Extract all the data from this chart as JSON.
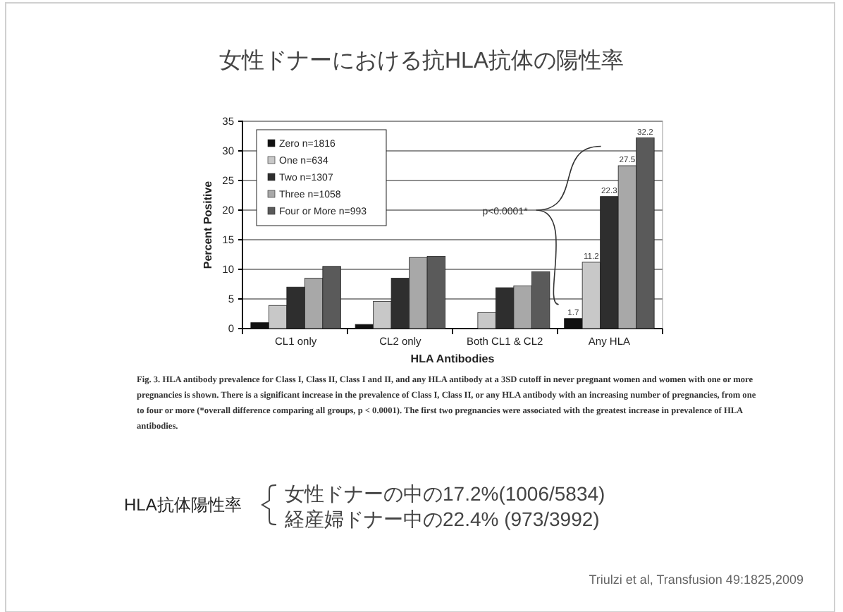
{
  "chart_data": {
    "type": "bar",
    "title": "女性ドナーにおける抗HLA抗体の陽性率",
    "xlabel": "HLA Antibodies",
    "ylabel": "Percent Positive",
    "categories": [
      "CL1 only",
      "CL2 only",
      "Both CL1 & CL2",
      "Any HLA"
    ],
    "series": [
      {
        "name": "Zero n=1816",
        "color": "#111111",
        "values": [
          1.0,
          0.7,
          0,
          1.7
        ],
        "value_labels": [
          null,
          null,
          null,
          "1.7"
        ]
      },
      {
        "name": "One n=634",
        "color": "#c8c8c8",
        "values": [
          3.9,
          4.6,
          2.7,
          11.2
        ],
        "value_labels": [
          null,
          null,
          null,
          "11.2"
        ]
      },
      {
        "name": "Two n=1307",
        "color": "#2e2e2e",
        "values": [
          7.0,
          8.5,
          6.9,
          22.3
        ],
        "value_labels": [
          null,
          null,
          null,
          "22.3"
        ]
      },
      {
        "name": "Three n=1058",
        "color": "#a8a8a8",
        "values": [
          8.5,
          12.0,
          7.2,
          27.5
        ],
        "value_labels": [
          null,
          null,
          null,
          "27.5"
        ]
      },
      {
        "name": "Four or More n=993",
        "color": "#5a5a5a",
        "values": [
          10.5,
          12.2,
          9.6,
          32.2
        ],
        "value_labels": [
          null,
          null,
          null,
          "32.2"
        ]
      }
    ],
    "ylim": [
      0,
      35
    ],
    "yticks": [
      0,
      5,
      10,
      15,
      20,
      25,
      30,
      35
    ],
    "grid": "y",
    "legend": "top left",
    "annotations": [
      "p<0.0001*",
      "Fig. 3. HLA antibody prevalence for Class I, Class II, Class I and II, and any HLA antibody at a 3SD cutoff in never pregnant women and women with one or more pregnancies is shown. There is a significant increase in the prevalence of Class I, Class II, or any HLA antibody with an increasing number of pregnancies, from one to four or more (*overall difference comparing all groups, p < 0.0001). The first two pregnancies were associated with the greatest increase in prevalence of HLA antibodies.",
      "HLA抗体陽性率",
      "女性ドナーの中の17.2%(1006/5834)",
      "経産婦ドナー中の22.4% (973/3992)",
      "Triulzi et al, Transfusion 49:1825,2009"
    ]
  }
}
